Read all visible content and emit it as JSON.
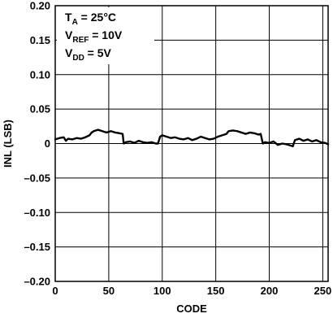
{
  "chart_data": {
    "type": "line",
    "title": "",
    "xlabel": "CODE",
    "ylabel": "INL (LSB)",
    "xlim": [
      0,
      255
    ],
    "ylim": [
      -0.2,
      0.2
    ],
    "grid": true,
    "x_ticks": [
      0,
      50,
      100,
      150,
      200,
      250
    ],
    "x_tick_labels": [
      "0",
      "50",
      "100",
      "150",
      "200",
      "250"
    ],
    "y_ticks": [
      0.2,
      0.15,
      0.1,
      0.05,
      0,
      -0.05,
      -0.1,
      -0.15,
      -0.2
    ],
    "y_tick_labels": [
      "0.20",
      "0.15",
      "0.10",
      "0.05",
      "0",
      "–0.05",
      "–0.10",
      "–0.15",
      "–0.20"
    ],
    "annotations": [
      {
        "main": "T",
        "sub": "A",
        "rest": " = 25°C"
      },
      {
        "main": "V",
        "sub": "REF",
        "rest": " = 10V"
      },
      {
        "main": "V",
        "sub": "DD",
        "rest": " = 5V"
      }
    ],
    "series": [
      {
        "color": "#000000",
        "x": [
          0,
          4,
          8,
          10,
          12,
          16,
          20,
          24,
          28,
          32,
          34,
          36,
          40,
          44,
          48,
          52,
          56,
          60,
          63,
          64,
          66,
          70,
          74,
          78,
          82,
          86,
          90,
          94,
          96,
          98,
          100,
          104,
          108,
          112,
          116,
          120,
          124,
          128,
          132,
          136,
          140,
          144,
          148,
          152,
          156,
          160,
          162,
          166,
          170,
          174,
          178,
          182,
          186,
          190,
          192,
          194,
          196,
          200,
          204,
          208,
          212,
          216,
          220,
          222,
          224,
          228,
          232,
          236,
          240,
          244,
          248,
          252,
          255
        ],
        "y": [
          0.006,
          0.008,
          0.009,
          0.004,
          0.007,
          0.006,
          0.008,
          0.007,
          0.009,
          0.012,
          0.016,
          0.018,
          0.02,
          0.018,
          0.016,
          0.018,
          0.016,
          0.015,
          0.014,
          0.0,
          0.002,
          0.003,
          0.001,
          0.004,
          0.002,
          0.001,
          0.002,
          0.0,
          0.0,
          0.01,
          0.012,
          0.01,
          0.008,
          0.009,
          0.007,
          0.006,
          0.008,
          0.005,
          0.007,
          0.01,
          0.008,
          0.006,
          0.007,
          0.01,
          0.012,
          0.014,
          0.018,
          0.019,
          0.018,
          0.016,
          0.014,
          0.016,
          0.015,
          0.013,
          0.014,
          0.0,
          0.002,
          0.001,
          0.003,
          -0.002,
          0.0,
          -0.001,
          -0.003,
          -0.004,
          0.005,
          0.007,
          0.004,
          0.006,
          0.003,
          0.005,
          0.002,
          0.001,
          -0.001
        ]
      }
    ]
  }
}
